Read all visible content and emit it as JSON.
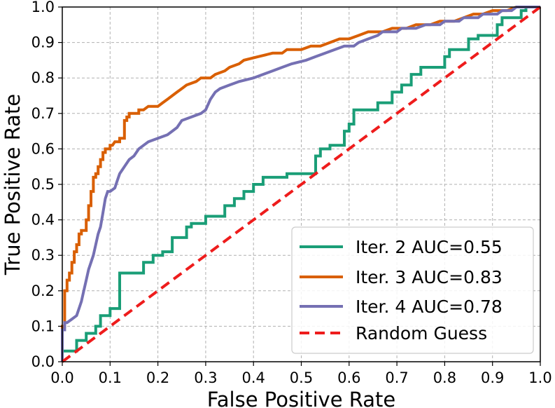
{
  "chart_data": {
    "type": "line",
    "title": "",
    "xlabel": "False Positive Rate",
    "ylabel": "True Positive Rate",
    "xlim": [
      0.0,
      1.0
    ],
    "ylim": [
      0.0,
      1.0
    ],
    "xticks": [
      "0.0",
      "0.1",
      "0.2",
      "0.3",
      "0.4",
      "0.5",
      "0.6",
      "0.7",
      "0.8",
      "0.9",
      "1.0"
    ],
    "yticks": [
      "0.0",
      "0.1",
      "0.2",
      "0.3",
      "0.4",
      "0.5",
      "0.6",
      "0.7",
      "0.8",
      "0.9",
      "1.0"
    ],
    "grid": true,
    "legend_position": "bottom-right",
    "series": [
      {
        "name": "Iter. 2 AUC=0.55",
        "color": "#1a9e77",
        "style": "solid",
        "points": [
          [
            0,
            0
          ],
          [
            0,
            0.03
          ],
          [
            0.03,
            0.03
          ],
          [
            0.03,
            0.06
          ],
          [
            0.05,
            0.06
          ],
          [
            0.05,
            0.08
          ],
          [
            0.07,
            0.08
          ],
          [
            0.07,
            0.1
          ],
          [
            0.08,
            0.1
          ],
          [
            0.08,
            0.13
          ],
          [
            0.1,
            0.13
          ],
          [
            0.1,
            0.15
          ],
          [
            0.12,
            0.15
          ],
          [
            0.12,
            0.25
          ],
          [
            0.17,
            0.25
          ],
          [
            0.17,
            0.28
          ],
          [
            0.19,
            0.28
          ],
          [
            0.19,
            0.3
          ],
          [
            0.21,
            0.3
          ],
          [
            0.21,
            0.31
          ],
          [
            0.23,
            0.31
          ],
          [
            0.23,
            0.35
          ],
          [
            0.26,
            0.35
          ],
          [
            0.26,
            0.38
          ],
          [
            0.27,
            0.38
          ],
          [
            0.27,
            0.39
          ],
          [
            0.3,
            0.39
          ],
          [
            0.3,
            0.41
          ],
          [
            0.34,
            0.41
          ],
          [
            0.34,
            0.44
          ],
          [
            0.36,
            0.44
          ],
          [
            0.36,
            0.46
          ],
          [
            0.38,
            0.46
          ],
          [
            0.38,
            0.48
          ],
          [
            0.4,
            0.48
          ],
          [
            0.4,
            0.5
          ],
          [
            0.42,
            0.5
          ],
          [
            0.42,
            0.52
          ],
          [
            0.47,
            0.52
          ],
          [
            0.47,
            0.53
          ],
          [
            0.53,
            0.53
          ],
          [
            0.53,
            0.58
          ],
          [
            0.54,
            0.58
          ],
          [
            0.54,
            0.6
          ],
          [
            0.56,
            0.6
          ],
          [
            0.56,
            0.61
          ],
          [
            0.59,
            0.61
          ],
          [
            0.59,
            0.65
          ],
          [
            0.6,
            0.65
          ],
          [
            0.6,
            0.67
          ],
          [
            0.61,
            0.67
          ],
          [
            0.61,
            0.71
          ],
          [
            0.66,
            0.71
          ],
          [
            0.66,
            0.73
          ],
          [
            0.69,
            0.73
          ],
          [
            0.69,
            0.76
          ],
          [
            0.71,
            0.76
          ],
          [
            0.71,
            0.78
          ],
          [
            0.73,
            0.78
          ],
          [
            0.73,
            0.81
          ],
          [
            0.75,
            0.81
          ],
          [
            0.75,
            0.83
          ],
          [
            0.8,
            0.83
          ],
          [
            0.8,
            0.86
          ],
          [
            0.81,
            0.86
          ],
          [
            0.81,
            0.88
          ],
          [
            0.85,
            0.88
          ],
          [
            0.85,
            0.91
          ],
          [
            0.87,
            0.91
          ],
          [
            0.87,
            0.92
          ],
          [
            0.91,
            0.92
          ],
          [
            0.91,
            0.95
          ],
          [
            0.92,
            0.95
          ],
          [
            0.92,
            0.97
          ],
          [
            0.96,
            0.97
          ],
          [
            0.96,
            0.99
          ],
          [
            0.97,
            0.99
          ],
          [
            0.97,
            1.0
          ],
          [
            1.0,
            1.0
          ]
        ]
      },
      {
        "name": "Iter. 3 AUC=0.83",
        "color": "#d95f02",
        "style": "solid",
        "points": [
          [
            0,
            0
          ],
          [
            0,
            0.1
          ],
          [
            0.005,
            0.1
          ],
          [
            0.005,
            0.2
          ],
          [
            0.01,
            0.2
          ],
          [
            0.01,
            0.23
          ],
          [
            0.015,
            0.23
          ],
          [
            0.015,
            0.25
          ],
          [
            0.02,
            0.25
          ],
          [
            0.02,
            0.28
          ],
          [
            0.025,
            0.28
          ],
          [
            0.025,
            0.31
          ],
          [
            0.03,
            0.31
          ],
          [
            0.03,
            0.33
          ],
          [
            0.035,
            0.33
          ],
          [
            0.035,
            0.36
          ],
          [
            0.04,
            0.36
          ],
          [
            0.04,
            0.37
          ],
          [
            0.05,
            0.37
          ],
          [
            0.05,
            0.4
          ],
          [
            0.055,
            0.4
          ],
          [
            0.055,
            0.44
          ],
          [
            0.06,
            0.44
          ],
          [
            0.06,
            0.48
          ],
          [
            0.065,
            0.48
          ],
          [
            0.065,
            0.52
          ],
          [
            0.07,
            0.52
          ],
          [
            0.07,
            0.53
          ],
          [
            0.075,
            0.53
          ],
          [
            0.075,
            0.55
          ],
          [
            0.08,
            0.55
          ],
          [
            0.08,
            0.57
          ],
          [
            0.085,
            0.57
          ],
          [
            0.085,
            0.59
          ],
          [
            0.09,
            0.59
          ],
          [
            0.09,
            0.6
          ],
          [
            0.1,
            0.6
          ],
          [
            0.1,
            0.61
          ],
          [
            0.105,
            0.61
          ],
          [
            0.11,
            0.62
          ],
          [
            0.12,
            0.62
          ],
          [
            0.12,
            0.63
          ],
          [
            0.13,
            0.63
          ],
          [
            0.13,
            0.68
          ],
          [
            0.135,
            0.68
          ],
          [
            0.135,
            0.69
          ],
          [
            0.14,
            0.69
          ],
          [
            0.14,
            0.7
          ],
          [
            0.16,
            0.7
          ],
          [
            0.16,
            0.71
          ],
          [
            0.17,
            0.71
          ],
          [
            0.18,
            0.72
          ],
          [
            0.2,
            0.72
          ],
          [
            0.21,
            0.73
          ],
          [
            0.22,
            0.74
          ],
          [
            0.23,
            0.75
          ],
          [
            0.24,
            0.76
          ],
          [
            0.25,
            0.77
          ],
          [
            0.26,
            0.78
          ],
          [
            0.28,
            0.79
          ],
          [
            0.29,
            0.8
          ],
          [
            0.31,
            0.8
          ],
          [
            0.32,
            0.81
          ],
          [
            0.34,
            0.82
          ],
          [
            0.35,
            0.83
          ],
          [
            0.37,
            0.84
          ],
          [
            0.38,
            0.85
          ],
          [
            0.41,
            0.86
          ],
          [
            0.44,
            0.87
          ],
          [
            0.46,
            0.87
          ],
          [
            0.47,
            0.88
          ],
          [
            0.5,
            0.88
          ],
          [
            0.52,
            0.89
          ],
          [
            0.54,
            0.89
          ],
          [
            0.56,
            0.9
          ],
          [
            0.58,
            0.91
          ],
          [
            0.6,
            0.91
          ],
          [
            0.62,
            0.92
          ],
          [
            0.64,
            0.93
          ],
          [
            0.67,
            0.93
          ],
          [
            0.69,
            0.94
          ],
          [
            0.72,
            0.94
          ],
          [
            0.74,
            0.95
          ],
          [
            0.77,
            0.95
          ],
          [
            0.79,
            0.96
          ],
          [
            0.82,
            0.96
          ],
          [
            0.84,
            0.97
          ],
          [
            0.86,
            0.98
          ],
          [
            0.88,
            0.98
          ],
          [
            0.9,
            0.99
          ],
          [
            0.93,
            0.99
          ],
          [
            0.95,
            1.0
          ],
          [
            1.0,
            1.0
          ]
        ]
      },
      {
        "name": "Iter. 4 AUC=0.78",
        "color": "#7570b3",
        "style": "solid",
        "points": [
          [
            0,
            0
          ],
          [
            0,
            0.09
          ],
          [
            0.005,
            0.09
          ],
          [
            0.005,
            0.11
          ],
          [
            0.01,
            0.11
          ],
          [
            0.02,
            0.12
          ],
          [
            0.03,
            0.13
          ],
          [
            0.035,
            0.15
          ],
          [
            0.04,
            0.17
          ],
          [
            0.045,
            0.2
          ],
          [
            0.05,
            0.23
          ],
          [
            0.055,
            0.26
          ],
          [
            0.06,
            0.28
          ],
          [
            0.065,
            0.3
          ],
          [
            0.07,
            0.33
          ],
          [
            0.075,
            0.36
          ],
          [
            0.08,
            0.38
          ],
          [
            0.085,
            0.42
          ],
          [
            0.09,
            0.46
          ],
          [
            0.095,
            0.48
          ],
          [
            0.1,
            0.48
          ],
          [
            0.11,
            0.49
          ],
          [
            0.115,
            0.51
          ],
          [
            0.12,
            0.53
          ],
          [
            0.125,
            0.54
          ],
          [
            0.13,
            0.55
          ],
          [
            0.14,
            0.57
          ],
          [
            0.15,
            0.58
          ],
          [
            0.16,
            0.6
          ],
          [
            0.17,
            0.61
          ],
          [
            0.18,
            0.62
          ],
          [
            0.2,
            0.63
          ],
          [
            0.22,
            0.64
          ],
          [
            0.23,
            0.65
          ],
          [
            0.24,
            0.66
          ],
          [
            0.25,
            0.68
          ],
          [
            0.27,
            0.69
          ],
          [
            0.29,
            0.7
          ],
          [
            0.3,
            0.71
          ],
          [
            0.31,
            0.74
          ],
          [
            0.32,
            0.76
          ],
          [
            0.33,
            0.77
          ],
          [
            0.35,
            0.78
          ],
          [
            0.37,
            0.79
          ],
          [
            0.4,
            0.8
          ],
          [
            0.42,
            0.81
          ],
          [
            0.44,
            0.82
          ],
          [
            0.46,
            0.83
          ],
          [
            0.48,
            0.84
          ],
          [
            0.51,
            0.85
          ],
          [
            0.53,
            0.86
          ],
          [
            0.55,
            0.87
          ],
          [
            0.57,
            0.88
          ],
          [
            0.59,
            0.89
          ],
          [
            0.61,
            0.89
          ],
          [
            0.62,
            0.9
          ],
          [
            0.64,
            0.91
          ],
          [
            0.66,
            0.92
          ],
          [
            0.67,
            0.93
          ],
          [
            0.7,
            0.93
          ],
          [
            0.71,
            0.94
          ],
          [
            0.74,
            0.94
          ],
          [
            0.76,
            0.95
          ],
          [
            0.79,
            0.95
          ],
          [
            0.8,
            0.96
          ],
          [
            0.83,
            0.96
          ],
          [
            0.84,
            0.97
          ],
          [
            0.87,
            0.97
          ],
          [
            0.88,
            0.98
          ],
          [
            0.91,
            0.98
          ],
          [
            0.92,
            0.99
          ],
          [
            0.94,
            0.99
          ],
          [
            0.95,
            1.0
          ],
          [
            1.0,
            1.0
          ]
        ]
      },
      {
        "name": "Random Guess",
        "color": "#ee1c1c",
        "style": "dashed",
        "points": [
          [
            0,
            0
          ],
          [
            1,
            1
          ]
        ]
      }
    ]
  }
}
